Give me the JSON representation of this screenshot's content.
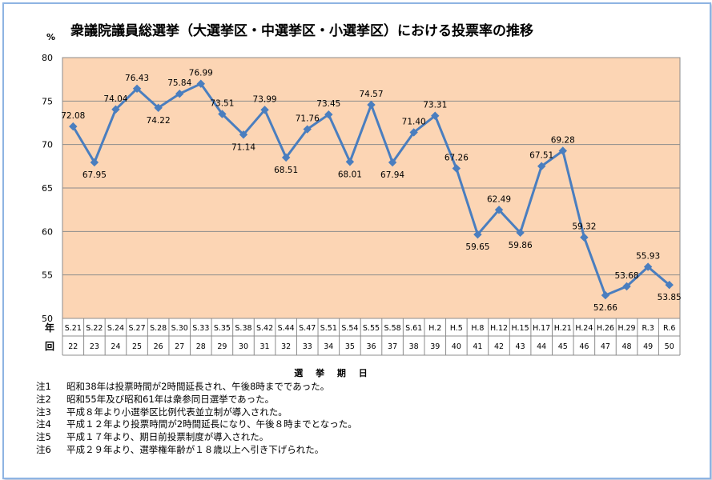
{
  "chart_data": {
    "type": "line",
    "title": "衆議院議員総選挙（大選挙区・中選挙区・小選挙区）における投票率の推移",
    "ylabel": "%",
    "ylim": [
      50,
      80
    ],
    "yticks": [
      50,
      55,
      60,
      65,
      70,
      75,
      80
    ],
    "xlabel": "選 挙 期 日",
    "row_labels": [
      "年",
      "回"
    ],
    "categories": [
      "S.21",
      "S.22",
      "S.24",
      "S.27",
      "S.28",
      "S.30",
      "S.33",
      "S.35",
      "S.38",
      "S.42",
      "S.44",
      "S.47",
      "S.51",
      "S.54",
      "S.55",
      "S.58",
      "S.61",
      "H.2",
      "H.5",
      "H.8",
      "H.12",
      "H.15",
      "H.17",
      "H.21",
      "H.24",
      "H.26",
      "H.29",
      "R.3",
      "R.6"
    ],
    "sessions": [
      "22",
      "23",
      "24",
      "25",
      "26",
      "27",
      "28",
      "29",
      "30",
      "31",
      "32",
      "33",
      "34",
      "35",
      "36",
      "37",
      "38",
      "39",
      "40",
      "41",
      "42",
      "43",
      "44",
      "45",
      "46",
      "47",
      "48",
      "49",
      "50"
    ],
    "values": [
      72.08,
      67.95,
      74.04,
      76.43,
      74.22,
      75.84,
      76.99,
      73.51,
      71.14,
      73.99,
      68.51,
      71.76,
      73.45,
      68.01,
      74.57,
      67.94,
      71.4,
      73.31,
      67.26,
      59.65,
      62.49,
      59.86,
      67.51,
      69.28,
      59.32,
      52.66,
      53.68,
      55.93,
      53.85
    ],
    "data_labels": [
      "72.08",
      "67.95",
      "74.04",
      "76.43",
      "74.22",
      "75.84",
      "76.99",
      "73.51",
      "71.14",
      "73.99",
      "68.51",
      "71.76",
      "73.45",
      "68.01",
      "74.57",
      "67.94",
      "71.40",
      "73.31",
      "67.26",
      "59.65",
      "62.49",
      "59.86",
      "67.51",
      "69.28",
      "59.32",
      "52.66",
      "53.68",
      "55.93",
      "53.85"
    ],
    "grid": true,
    "legend": "none",
    "colors": {
      "plot_bg": "#fcd5b4",
      "line": "#4a7ebf",
      "grid": "#8c8c8c"
    }
  },
  "notes": [
    {
      "id": "注1",
      "text": "昭和38年は投票時間が2時間延長され、午後8時までであった。"
    },
    {
      "id": "注2",
      "text": "昭和55年及び昭和61年は衆参同日選挙であった。"
    },
    {
      "id": "注3",
      "text": "平成８年より小選挙区比例代表並立制が導入された。"
    },
    {
      "id": "注4",
      "text": "平成１２年より投票時間が2時間延長になり、午後８時までとなった。"
    },
    {
      "id": "注5",
      "text": "平成１７年より、期日前投票制度が導入された。"
    },
    {
      "id": "注6",
      "text": "平成２９年より、選挙権年齢が１８歳以上へ引き下げられた。"
    }
  ]
}
